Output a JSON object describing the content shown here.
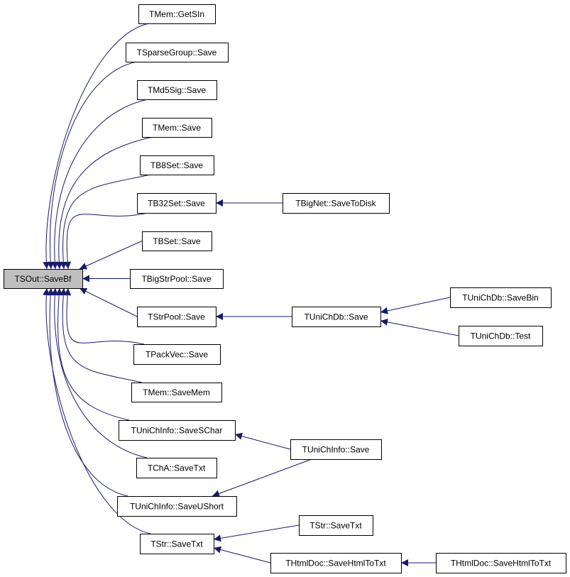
{
  "nodes": [
    {
      "id": "root",
      "label": "TSOut::SaveBf",
      "highlight": true
    },
    {
      "id": "n1",
      "label": "TMem::GetSIn"
    },
    {
      "id": "n2",
      "label": "TSparseGroup::Save"
    },
    {
      "id": "n3",
      "label": "TMd5Sig::Save"
    },
    {
      "id": "n4",
      "label": "TMem::Save"
    },
    {
      "id": "n5",
      "label": "TB8Set::Save"
    },
    {
      "id": "n6",
      "label": "TB32Set::Save"
    },
    {
      "id": "n7",
      "label": "TBSet::Save"
    },
    {
      "id": "n8",
      "label": "TBigStrPool::Save"
    },
    {
      "id": "n9",
      "label": "TStrPool::Save"
    },
    {
      "id": "n10",
      "label": "TPackVec::Save"
    },
    {
      "id": "n11",
      "label": "TMem::SaveMem"
    },
    {
      "id": "n12",
      "label": "TUniChInfo::SaveSChar"
    },
    {
      "id": "n13",
      "label": "TChA::SaveTxt"
    },
    {
      "id": "n14",
      "label": "TUniChInfo::SaveUShort"
    },
    {
      "id": "n15",
      "label": "TStr::SaveTxt"
    },
    {
      "id": "m1",
      "label": "TBigNet::SaveToDisk"
    },
    {
      "id": "m2",
      "label": "TUniChDb::Save"
    },
    {
      "id": "m3",
      "label": "TUniChInfo::Save"
    },
    {
      "id": "m4",
      "label": "TStr::SaveTxt"
    },
    {
      "id": "m5",
      "label": "THtmlDoc::SaveHtmlToTxt"
    },
    {
      "id": "k1",
      "label": "TUniChDb::SaveBin"
    },
    {
      "id": "k2",
      "label": "TUniChDb::Test"
    },
    {
      "id": "k3",
      "label": "THtmlDoc::SaveHtmlToTxt"
    }
  ],
  "edges": [
    [
      "n1",
      "root"
    ],
    [
      "n2",
      "root"
    ],
    [
      "n3",
      "root"
    ],
    [
      "n4",
      "root"
    ],
    [
      "n5",
      "root"
    ],
    [
      "n6",
      "root"
    ],
    [
      "n7",
      "root"
    ],
    [
      "n8",
      "root"
    ],
    [
      "n9",
      "root"
    ],
    [
      "n10",
      "root"
    ],
    [
      "n11",
      "root"
    ],
    [
      "n12",
      "root"
    ],
    [
      "n13",
      "root"
    ],
    [
      "n14",
      "root"
    ],
    [
      "n15",
      "root"
    ],
    [
      "m1",
      "n6"
    ],
    [
      "m2",
      "n9"
    ],
    [
      "m3",
      "n12"
    ],
    [
      "m3",
      "n14"
    ],
    [
      "m4",
      "n15"
    ],
    [
      "m5",
      "n15"
    ],
    [
      "k1",
      "m2"
    ],
    [
      "k2",
      "m2"
    ],
    [
      "k3",
      "m5"
    ]
  ],
  "colors": {
    "edge": "#191970",
    "node_border": "#000000",
    "highlight_fill": "#bfbfbf"
  }
}
